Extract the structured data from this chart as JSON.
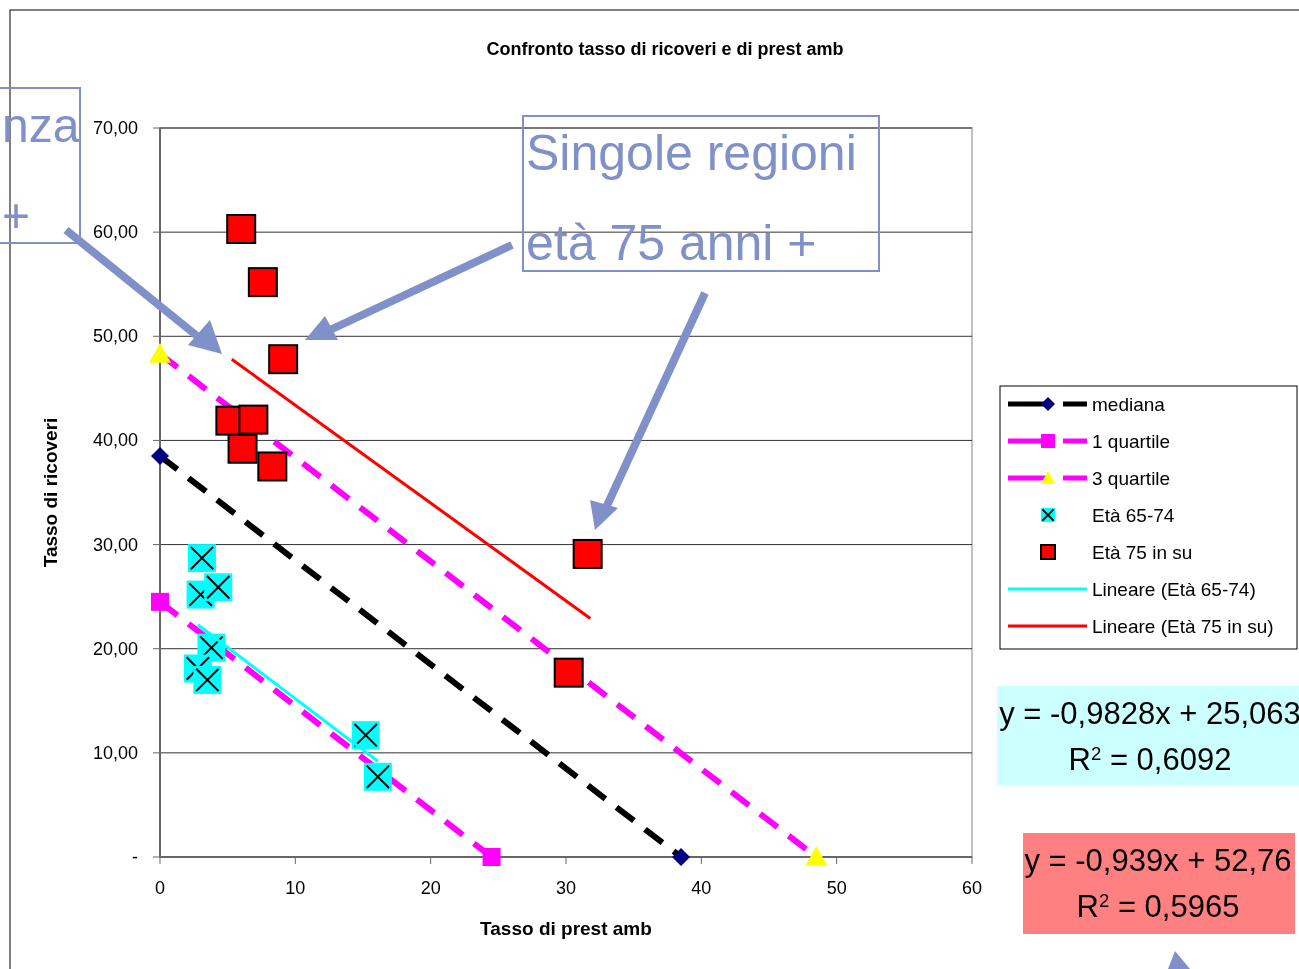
{
  "chart_data": {
    "type": "scatter",
    "title": "Confronto tasso di ricoveri e di prest amb",
    "xlabel": "Tasso di prest amb",
    "ylabel": "Tasso di ricoveri",
    "xlim": [
      0,
      60
    ],
    "xticks": [
      0,
      10,
      20,
      30,
      40,
      50,
      60
    ],
    "ylim": [
      0,
      70
    ],
    "yticks": [
      {
        "value": 0,
        "label": "-"
      },
      {
        "value": 10,
        "label": "10,00"
      },
      {
        "value": 20,
        "label": "20,00"
      },
      {
        "value": 30,
        "label": "30,00"
      },
      {
        "value": 40,
        "label": "40,00"
      },
      {
        "value": 50,
        "label": "50,00"
      },
      {
        "value": 60,
        "label": "60,00"
      },
      {
        "value": 70,
        "label": "70,00"
      }
    ],
    "grid": "y",
    "legend": "right",
    "series": [
      {
        "name": "mediana",
        "type": "line",
        "color": "#000000",
        "colors": [
          "#000080",
          "#000080"
        ],
        "marker": "diamond",
        "line_style": "dashed",
        "x": [
          0,
          38.5
        ],
        "values": [
          38.5,
          0
        ]
      },
      {
        "name": "1 quartile",
        "type": "line",
        "color": "#ff00ff",
        "colors": [
          "#ff00ff",
          "#ff00ff"
        ],
        "marker": "square",
        "line_style": "dashed",
        "x": [
          0,
          24.5
        ],
        "values": [
          24.5,
          0
        ]
      },
      {
        "name": "3 quartile",
        "type": "line",
        "color": "#ff00ff",
        "colors": [
          "#ffff00",
          "#ffff00"
        ],
        "marker": "triangle",
        "line_style": "dashed",
        "x": [
          0,
          48.5
        ],
        "values": [
          48.3,
          0
        ]
      },
      {
        "name": "Età 65-74",
        "color": "#00ffff",
        "marker": "square",
        "x": [
          3.1,
          3.0,
          4.3,
          3.8,
          2.8,
          3.5,
          15.2,
          16.1
        ],
        "values": [
          28.7,
          25.2,
          25.9,
          20.1,
          18.1,
          17.0,
          11.7,
          7.7
        ]
      },
      {
        "name": "Età 75 in su",
        "color": "#ff0000",
        "marker": "square",
        "x": [
          6.0,
          7.6,
          9.1,
          5.2,
          6.9,
          6.1,
          8.3,
          31.6,
          30.2
        ],
        "values": [
          60.3,
          55.2,
          47.8,
          41.9,
          42.0,
          39.2,
          37.5,
          29.1,
          17.7
        ]
      },
      {
        "name": "Lineare (Età 65-74)",
        "type": "line",
        "color": "#00ffff",
        "marker": "none",
        "line_style": "solid",
        "x": [
          2.8,
          16.1
        ],
        "values": [
          22.3,
          9.2
        ]
      },
      {
        "name": "Lineare (Età 75 in su)",
        "type": "line",
        "color": "#ff0000",
        "marker": "none",
        "line_style": "solid",
        "x": [
          5.3,
          31.8
        ],
        "values": [
          47.8,
          22.9
        ]
      }
    ],
    "annotations": [
      "nza",
      "+",
      "Singole regioni",
      "età 75 anni +",
      "y = -0,9828x + 25,063",
      "R$^{2}$ = 0,6092",
      "y = -0,939x + 52,76",
      "R$^{2}$ = 0,5965"
    ]
  }
}
